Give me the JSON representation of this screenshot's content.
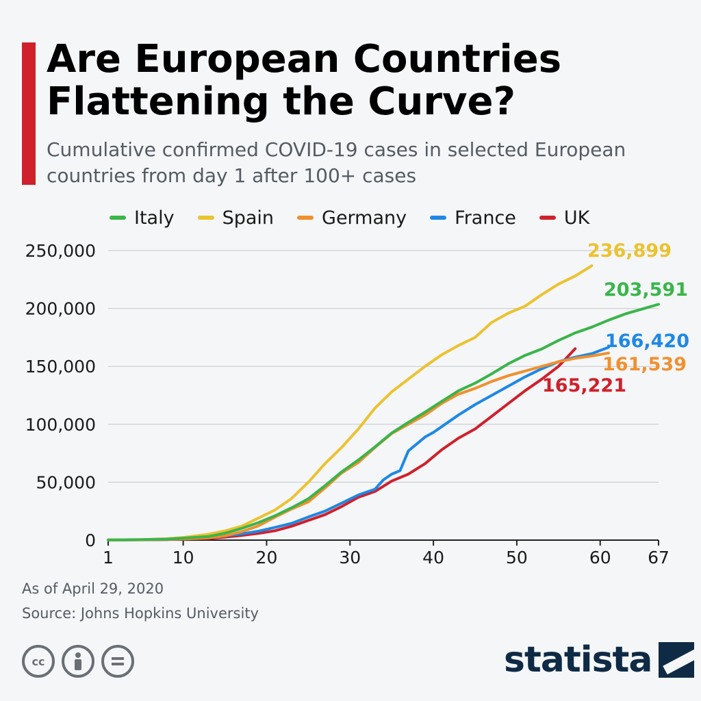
{
  "header": {
    "title": "Are European Countries Flattening the Curve?",
    "subtitle": "Cumulative confirmed COVID-19 cases in selected European countries from day 1 after 100+ cases"
  },
  "footer": {
    "as_of": "As of April 29, 2020",
    "source": "Source: Johns Hopkins University",
    "brand": "statista",
    "license_icons": [
      "cc-icon",
      "attribution-icon",
      "no-derivatives-icon"
    ]
  },
  "colors": {
    "accent": "#d0202b",
    "Italy": "#3ab54a",
    "Spain": "#ecc22f",
    "Germany": "#f0902e",
    "France": "#1e88e5",
    "UK": "#d0202b"
  },
  "chart_data": {
    "type": "line",
    "title": "Are European Countries Flattening the Curve?",
    "subtitle": "Cumulative confirmed COVID-19 cases in selected European countries from day 1 after 100+ cases",
    "xlabel": "",
    "ylabel": "",
    "xlim": [
      1,
      67
    ],
    "ylim": [
      0,
      250000
    ],
    "x_ticks": [
      1,
      10,
      20,
      30,
      40,
      50,
      60,
      67
    ],
    "y_ticks": [
      0,
      50000,
      100000,
      150000,
      200000,
      250000
    ],
    "y_tick_labels": [
      "0",
      "50,000",
      "100,000",
      "150,000",
      "200,000",
      "250,000"
    ],
    "grid": true,
    "legend": "top",
    "series": [
      {
        "name": "Italy",
        "end_label": "203,591",
        "points": [
          [
            1,
            150
          ],
          [
            5,
            400
          ],
          [
            8,
            900
          ],
          [
            10,
            1700
          ],
          [
            13,
            3100
          ],
          [
            15,
            5900
          ],
          [
            17,
            10100
          ],
          [
            19,
            15100
          ],
          [
            21,
            21000
          ],
          [
            23,
            27980
          ],
          [
            25,
            35700
          ],
          [
            27,
            47000
          ],
          [
            29,
            59000
          ],
          [
            31,
            69200
          ],
          [
            33,
            80500
          ],
          [
            35,
            92500
          ],
          [
            37,
            101700
          ],
          [
            39,
            110500
          ],
          [
            41,
            119800
          ],
          [
            43,
            128900
          ],
          [
            45,
            135500
          ],
          [
            47,
            143600
          ],
          [
            49,
            152300
          ],
          [
            51,
            159500
          ],
          [
            53,
            165100
          ],
          [
            55,
            172400
          ],
          [
            57,
            178900
          ],
          [
            59,
            183900
          ],
          [
            61,
            189900
          ],
          [
            63,
            195300
          ],
          [
            65,
            199400
          ],
          [
            67,
            203591
          ]
        ]
      },
      {
        "name": "Spain",
        "end_label": "236,899",
        "points": [
          [
            1,
            150
          ],
          [
            5,
            500
          ],
          [
            8,
            1200
          ],
          [
            10,
            2300
          ],
          [
            13,
            5000
          ],
          [
            15,
            8000
          ],
          [
            17,
            12000
          ],
          [
            19,
            19000
          ],
          [
            21,
            26000
          ],
          [
            23,
            36000
          ],
          [
            25,
            50000
          ],
          [
            27,
            66000
          ],
          [
            29,
            80000
          ],
          [
            31,
            96000
          ],
          [
            33,
            114000
          ],
          [
            35,
            128000
          ],
          [
            37,
            139000
          ],
          [
            39,
            150000
          ],
          [
            41,
            160000
          ],
          [
            43,
            168000
          ],
          [
            45,
            175000
          ],
          [
            47,
            188000
          ],
          [
            49,
            196000
          ],
          [
            51,
            202000
          ],
          [
            53,
            212000
          ],
          [
            55,
            221000
          ],
          [
            57,
            228000
          ],
          [
            59,
            236899
          ]
        ]
      },
      {
        "name": "Germany",
        "end_label": "161,539",
        "points": [
          [
            1,
            130
          ],
          [
            5,
            300
          ],
          [
            8,
            700
          ],
          [
            10,
            1000
          ],
          [
            13,
            2000
          ],
          [
            15,
            3700
          ],
          [
            17,
            7200
          ],
          [
            19,
            12300
          ],
          [
            21,
            19800
          ],
          [
            23,
            26900
          ],
          [
            25,
            33000
          ],
          [
            27,
            45000
          ],
          [
            29,
            58000
          ],
          [
            31,
            67000
          ],
          [
            33,
            80000
          ],
          [
            35,
            92000
          ],
          [
            37,
            100000
          ],
          [
            39,
            108000
          ],
          [
            41,
            118000
          ],
          [
            43,
            126000
          ],
          [
            45,
            131000
          ],
          [
            47,
            137000
          ],
          [
            49,
            142000
          ],
          [
            51,
            146000
          ],
          [
            53,
            150000
          ],
          [
            55,
            154000
          ],
          [
            57,
            157000
          ],
          [
            59,
            159000
          ],
          [
            61,
            161539
          ]
        ]
      },
      {
        "name": "France",
        "end_label": "166,420",
        "points": [
          [
            1,
            130
          ],
          [
            5,
            300
          ],
          [
            8,
            600
          ],
          [
            10,
            1100
          ],
          [
            13,
            2100
          ],
          [
            15,
            3600
          ],
          [
            17,
            5400
          ],
          [
            19,
            7700
          ],
          [
            21,
            11000
          ],
          [
            23,
            14500
          ],
          [
            25,
            20000
          ],
          [
            27,
            25000
          ],
          [
            29,
            32000
          ],
          [
            31,
            39000
          ],
          [
            33,
            44000
          ],
          [
            34,
            52000
          ],
          [
            35,
            57000
          ],
          [
            36,
            60000
          ],
          [
            37,
            77000
          ],
          [
            39,
            89000
          ],
          [
            40,
            93000
          ],
          [
            41,
            98000
          ],
          [
            43,
            108000
          ],
          [
            45,
            117000
          ],
          [
            47,
            125000
          ],
          [
            49,
            133000
          ],
          [
            51,
            141000
          ],
          [
            53,
            148000
          ],
          [
            55,
            154000
          ],
          [
            57,
            158000
          ],
          [
            59,
            161000
          ],
          [
            61,
            166420
          ]
        ]
      },
      {
        "name": "UK",
        "end_label": "165,221",
        "points": [
          [
            1,
            100
          ],
          [
            5,
            250
          ],
          [
            8,
            500
          ],
          [
            10,
            800
          ],
          [
            13,
            1500
          ],
          [
            15,
            2600
          ],
          [
            17,
            4000
          ],
          [
            19,
            5800
          ],
          [
            21,
            8100
          ],
          [
            23,
            12000
          ],
          [
            25,
            17000
          ],
          [
            27,
            22000
          ],
          [
            29,
            29000
          ],
          [
            31,
            37000
          ],
          [
            33,
            42000
          ],
          [
            35,
            51000
          ],
          [
            37,
            57000
          ],
          [
            39,
            66000
          ],
          [
            41,
            78000
          ],
          [
            43,
            88000
          ],
          [
            45,
            96000
          ],
          [
            47,
            107000
          ],
          [
            49,
            118000
          ],
          [
            51,
            129000
          ],
          [
            53,
            139000
          ],
          [
            55,
            150000
          ],
          [
            57,
            165221
          ]
        ]
      }
    ]
  }
}
